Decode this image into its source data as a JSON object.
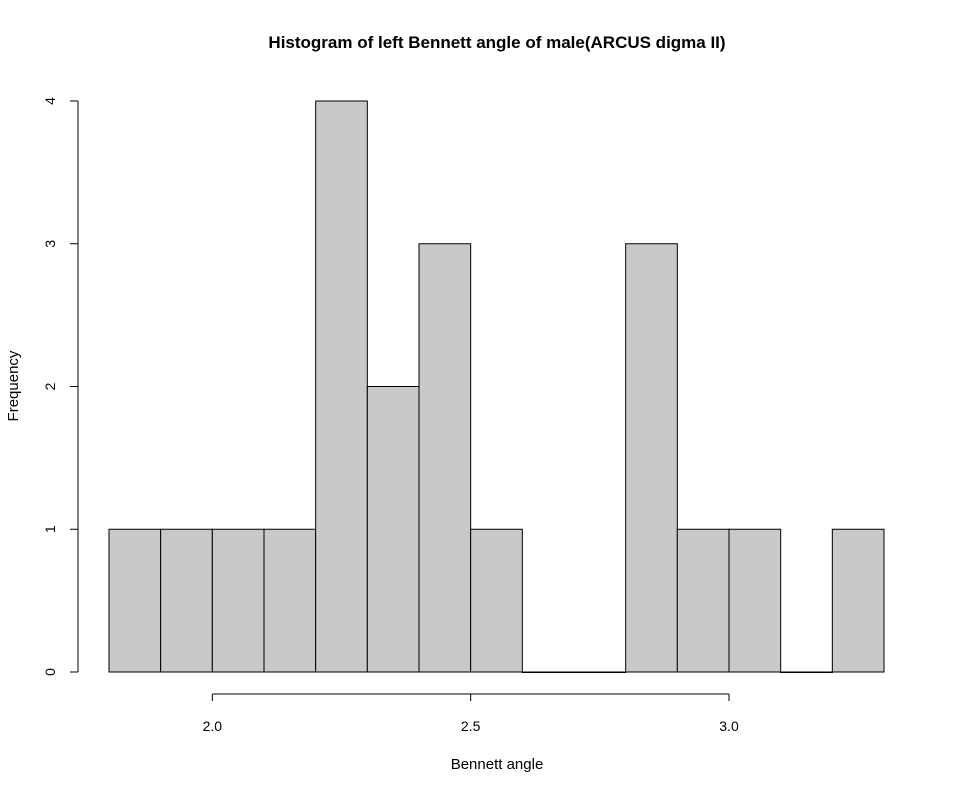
{
  "chart_data": {
    "type": "bar",
    "title": "Histogram of left Bennett angle of male(ARCUS digma II)",
    "xlabel": "Bennett angle",
    "ylabel": "Frequency",
    "bins": [
      {
        "x0": 1.8,
        "x1": 1.9,
        "count": 1
      },
      {
        "x0": 1.9,
        "x1": 2.0,
        "count": 1
      },
      {
        "x0": 2.0,
        "x1": 2.1,
        "count": 1
      },
      {
        "x0": 2.1,
        "x1": 2.2,
        "count": 1
      },
      {
        "x0": 2.2,
        "x1": 2.3,
        "count": 4
      },
      {
        "x0": 2.3,
        "x1": 2.4,
        "count": 2
      },
      {
        "x0": 2.4,
        "x1": 2.5,
        "count": 3
      },
      {
        "x0": 2.5,
        "x1": 2.6,
        "count": 1
      },
      {
        "x0": 2.6,
        "x1": 2.7,
        "count": 0
      },
      {
        "x0": 2.7,
        "x1": 2.8,
        "count": 0
      },
      {
        "x0": 2.8,
        "x1": 2.9,
        "count": 3
      },
      {
        "x0": 2.9,
        "x1": 3.0,
        "count": 1
      },
      {
        "x0": 3.0,
        "x1": 3.1,
        "count": 1
      },
      {
        "x0": 3.1,
        "x1": 3.2,
        "count": 0
      },
      {
        "x0": 3.2,
        "x1": 3.3,
        "count": 1
      }
    ],
    "x_ticks": [
      {
        "value": 2.0,
        "label": "2.0"
      },
      {
        "value": 2.5,
        "label": "2.5"
      },
      {
        "value": 3.0,
        "label": "3.0"
      }
    ],
    "y_ticks": [
      {
        "value": 0,
        "label": "0"
      },
      {
        "value": 1,
        "label": "1"
      },
      {
        "value": 2,
        "label": "2"
      },
      {
        "value": 3,
        "label": "3"
      },
      {
        "value": 4,
        "label": "4"
      }
    ],
    "xlim": [
      1.8,
      3.3
    ],
    "ylim": [
      0,
      4
    ],
    "bar_color": "#c9c9c9",
    "grid": false,
    "legend": false
  }
}
